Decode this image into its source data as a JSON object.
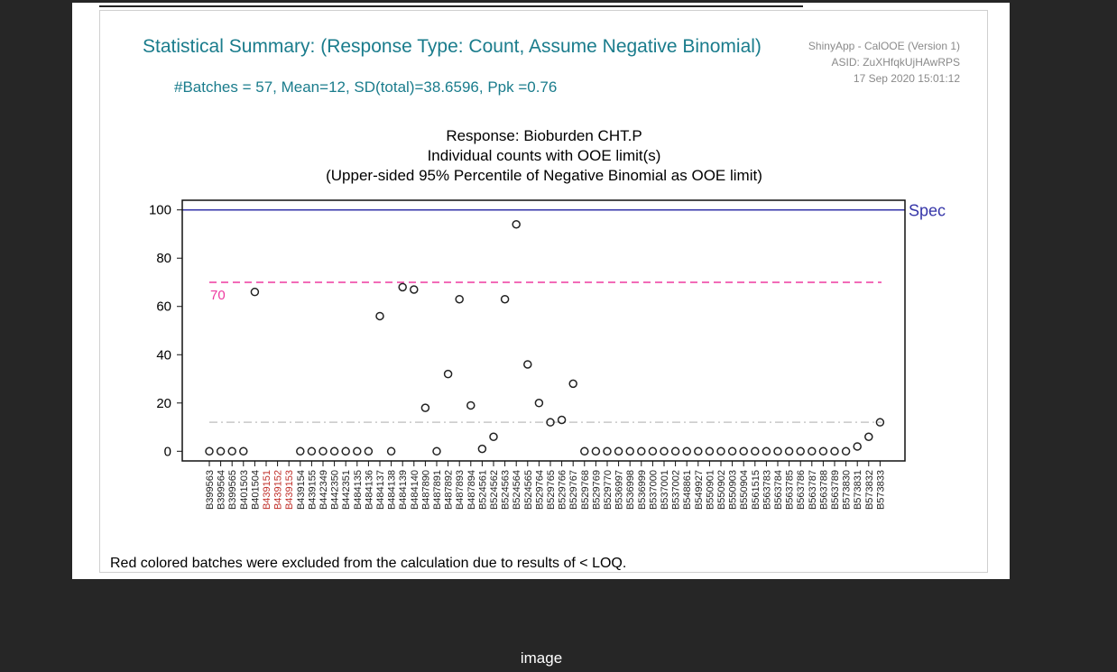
{
  "caption": "image",
  "report": {
    "summary_title": "Statistical Summary: (Response Type: Count, Assume Negative Binomial)",
    "summary_stats": "#Batches = 57,  Mean=12,  SD(total)=38.6596,  Ppk =0.76",
    "meta_app": "ShinyApp - CalOOE (Version 1)",
    "meta_asid": "ASID: ZuXHfqkUjHAwRPS",
    "meta_date": "17 Sep 2020 15:01:12",
    "footnote": "Red colored batches were excluded from the calculation due to results of < LOQ."
  },
  "chart_data": {
    "type": "scatter",
    "title_lines": [
      "Response: Bioburden CHT.P",
      "Individual counts with OOE limit(s)",
      "(Upper-sided 95% Percentile of Negative Binomial as OOE limit)"
    ],
    "ylim": [
      -4,
      104
    ],
    "yticks": [
      0,
      20,
      40,
      60,
      80,
      100
    ],
    "grid": false,
    "spec_limit": {
      "value": 100,
      "label": "Spec",
      "color": "#3535a8"
    },
    "ooe_limit": {
      "value": 70,
      "label": "70",
      "color": "#ee3aa0"
    },
    "mean_line": {
      "value": 12,
      "color": "#c8c8c8"
    },
    "point_color": "#222222",
    "excluded_color": "#c0302a",
    "categories": [
      "B399563",
      "B399564",
      "B399565",
      "B401503",
      "B401504",
      "B439151",
      "B439152",
      "B439153",
      "B439154",
      "B439155",
      "B442349",
      "B442350",
      "B442351",
      "B484135",
      "B484136",
      "B484137",
      "B484138",
      "B484139",
      "B484140",
      "B487890",
      "B487891",
      "B487892",
      "B487893",
      "B487894",
      "B524561",
      "B524562",
      "B524563",
      "B524564",
      "B524565",
      "B529764",
      "B529765",
      "B529766",
      "B529767",
      "B529768",
      "B529769",
      "B529770",
      "B536997",
      "B536998",
      "B536999",
      "B537000",
      "B537001",
      "B537002",
      "B548861",
      "B549927",
      "B550901",
      "B550902",
      "B550903",
      "B550904",
      "B561515",
      "B563783",
      "B563784",
      "B563785",
      "B563786",
      "B563787",
      "B563788",
      "B563789",
      "B573830",
      "B573831",
      "B573832",
      "B573833"
    ],
    "excluded": [
      "B439151",
      "B439152",
      "B439153"
    ],
    "values": [
      0,
      0,
      0,
      0,
      66,
      null,
      null,
      null,
      0,
      0,
      0,
      0,
      0,
      0,
      0,
      56,
      0,
      68,
      67,
      18,
      0,
      32,
      63,
      19,
      1,
      6,
      63,
      94,
      36,
      20,
      12,
      13,
      28,
      0,
      0,
      0,
      0,
      0,
      0,
      0,
      0,
      0,
      0,
      0,
      0,
      0,
      0,
      0,
      0,
      0,
      0,
      0,
      0,
      0,
      0,
      0,
      0,
      2,
      6,
      12
    ]
  }
}
